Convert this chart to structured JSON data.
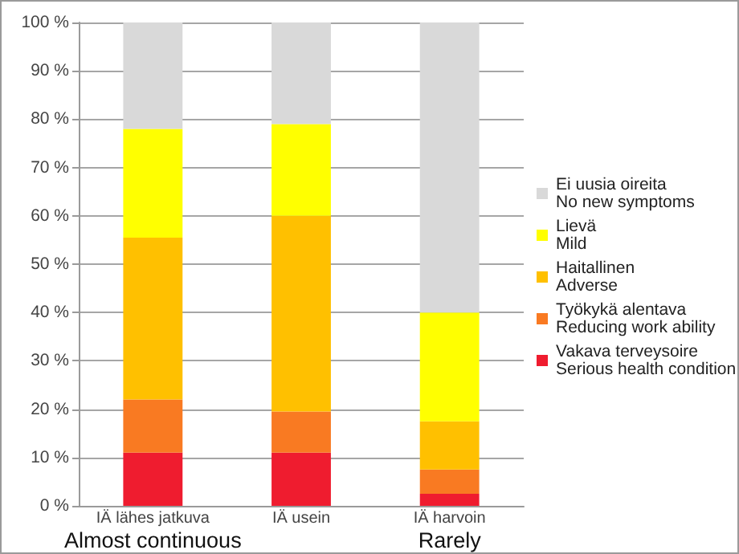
{
  "chart_data": {
    "type": "bar",
    "stacked": true,
    "categories": [
      "IÄ lähes jatkuva\nAlmost continuous",
      "IÄ usein",
      "IÄ harvoin\nRarely"
    ],
    "series": [
      {
        "name": "Vakava terveysoire\nSerious health condition",
        "color": "#ef1c2f",
        "values": [
          11,
          11,
          2.5
        ]
      },
      {
        "name": "Työkykä alentava\nReducing work ability",
        "color": "#f97a22",
        "values": [
          11,
          8.5,
          5
        ]
      },
      {
        "name": "Haitallinen\nAdverse",
        "color": "#ffc000",
        "values": [
          33.5,
          40.5,
          10
        ]
      },
      {
        "name": "Lievä\nMild",
        "color": "#ffff00",
        "values": [
          22.5,
          19,
          22.5
        ]
      },
      {
        "name": "Ei uusia oireita\nNo new symptoms",
        "color": "#d9d9d9",
        "values": [
          22,
          21,
          60
        ]
      }
    ],
    "ylim": [
      0,
      100
    ],
    "yticks": [
      {
        "value": 0,
        "label": "0 %"
      },
      {
        "value": 10,
        "label": "10 %"
      },
      {
        "value": 20,
        "label": "20 %"
      },
      {
        "value": 30,
        "label": "30 %"
      },
      {
        "value": 40,
        "label": "40 %"
      },
      {
        "value": 50,
        "label": "50 %"
      },
      {
        "value": 60,
        "label": "60 %"
      },
      {
        "value": 70,
        "label": "70 %"
      },
      {
        "value": 80,
        "label": "80 %"
      },
      {
        "value": 90,
        "label": "90 %"
      },
      {
        "value": 100,
        "label": "100 %"
      }
    ],
    "grid": "y",
    "legend": "right"
  }
}
